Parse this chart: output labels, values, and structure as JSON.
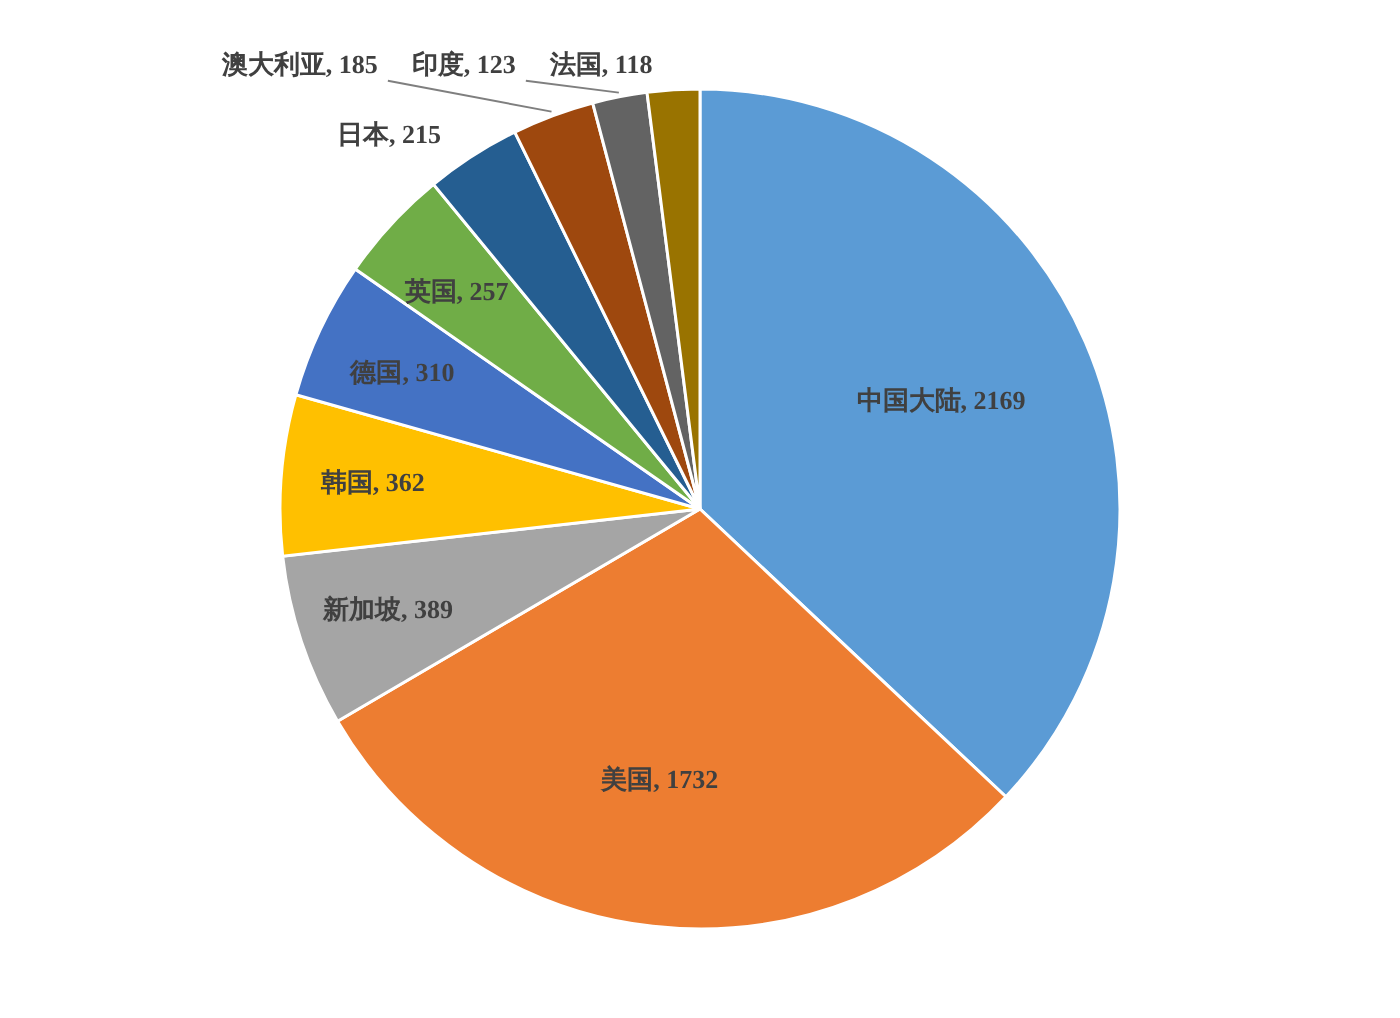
{
  "chart_data": {
    "type": "pie",
    "categories": [
      "中国大陆",
      "美国",
      "新加坡",
      "韩国",
      "德国",
      "英国",
      "日本",
      "澳大利亚",
      "印度",
      "法国"
    ],
    "values": [
      2169,
      1732,
      389,
      362,
      310,
      257,
      215,
      185,
      123,
      118
    ],
    "colors": [
      "#5b9bd5",
      "#ed7d31",
      "#a5a5a5",
      "#ffc000",
      "#4472c4",
      "#70ad47",
      "#255e91",
      "#9e480e",
      "#636363",
      "#997300"
    ],
    "value_labels": [
      ", 2169",
      ", 1732",
      ", 389",
      ", 362",
      ", 310",
      ", 257",
      ", 215",
      ", 185",
      ", 123",
      ", 118"
    ]
  }
}
